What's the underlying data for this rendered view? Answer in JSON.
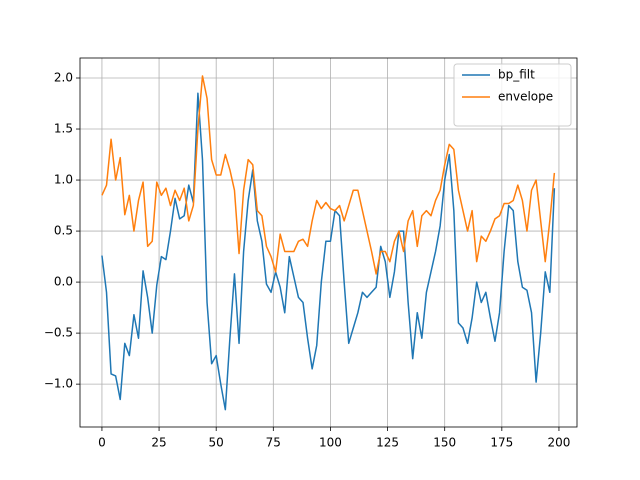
{
  "chart_data": {
    "type": "line",
    "x": [
      0,
      2,
      4,
      6,
      8,
      10,
      12,
      14,
      16,
      18,
      20,
      22,
      24,
      26,
      28,
      30,
      32,
      34,
      36,
      38,
      40,
      42,
      44,
      46,
      48,
      50,
      52,
      54,
      56,
      58,
      60,
      62,
      64,
      66,
      68,
      70,
      72,
      74,
      76,
      78,
      80,
      82,
      84,
      86,
      88,
      90,
      92,
      94,
      96,
      98,
      100,
      102,
      104,
      106,
      108,
      110,
      112,
      114,
      116,
      118,
      120,
      122,
      124,
      126,
      128,
      130,
      132,
      134,
      136,
      138,
      140,
      142,
      144,
      146,
      148,
      150,
      152,
      154,
      156,
      158,
      160,
      162,
      164,
      166,
      168,
      170,
      172,
      174,
      176,
      178,
      180,
      182,
      184,
      186,
      188,
      190,
      192,
      194,
      196,
      198
    ],
    "series": [
      {
        "name": "bp_filt",
        "color": "#1f77b4",
        "values": [
          0.26,
          -0.1,
          -0.9,
          -0.92,
          -1.15,
          -0.6,
          -0.72,
          -0.32,
          -0.55,
          0.11,
          -0.15,
          -0.5,
          -0.03,
          0.25,
          0.22,
          0.5,
          0.82,
          0.62,
          0.65,
          0.95,
          0.78,
          1.85,
          1.2,
          -0.2,
          -0.8,
          -0.72,
          -1.0,
          -1.25,
          -0.55,
          0.08,
          -0.6,
          0.3,
          0.8,
          1.1,
          0.6,
          0.4,
          -0.02,
          -0.1,
          0.1,
          -0.05,
          -0.3,
          0.25,
          0.05,
          -0.15,
          -0.2,
          -0.55,
          -0.85,
          -0.62,
          0.0,
          0.4,
          0.4,
          0.7,
          0.65,
          0.0,
          -0.6,
          -0.45,
          -0.3,
          -0.1,
          -0.15,
          -0.1,
          -0.05,
          0.35,
          0.2,
          -0.15,
          0.1,
          0.5,
          0.5,
          -0.2,
          -0.75,
          -0.3,
          -0.55,
          -0.1,
          0.1,
          0.3,
          0.55,
          1.0,
          1.25,
          0.7,
          -0.4,
          -0.45,
          -0.6,
          -0.35,
          0.0,
          -0.2,
          -0.1,
          -0.35,
          -0.58,
          -0.3,
          0.3,
          0.75,
          0.7,
          0.2,
          -0.05,
          -0.08,
          -0.3,
          -0.98,
          -0.5,
          0.1,
          -0.1,
          0.92
        ]
      },
      {
        "name": "envelope",
        "color": "#ff7f0e",
        "values": [
          0.85,
          0.95,
          1.4,
          1.0,
          1.22,
          0.66,
          0.85,
          0.5,
          0.8,
          0.98,
          0.35,
          0.4,
          0.98,
          0.85,
          0.92,
          0.75,
          0.9,
          0.8,
          0.92,
          0.6,
          0.75,
          1.5,
          2.02,
          1.8,
          1.2,
          1.05,
          1.05,
          1.25,
          1.1,
          0.9,
          0.28,
          0.9,
          1.2,
          1.15,
          0.7,
          0.65,
          0.35,
          0.25,
          0.1,
          0.47,
          0.3,
          0.3,
          0.3,
          0.4,
          0.42,
          0.35,
          0.6,
          0.8,
          0.72,
          0.78,
          0.72,
          0.7,
          0.75,
          0.6,
          0.75,
          0.9,
          0.9,
          0.7,
          0.5,
          0.3,
          0.08,
          0.3,
          0.3,
          0.2,
          0.4,
          0.5,
          0.3,
          0.6,
          0.7,
          0.35,
          0.65,
          0.7,
          0.65,
          0.8,
          0.9,
          1.15,
          1.35,
          1.3,
          0.9,
          0.7,
          0.5,
          0.7,
          0.2,
          0.45,
          0.4,
          0.5,
          0.62,
          0.65,
          0.77,
          0.77,
          0.8,
          0.95,
          0.8,
          0.5,
          0.9,
          1.0,
          0.6,
          0.2,
          0.6,
          1.07
        ]
      }
    ],
    "xlim": [
      -9.6,
      207.9
    ],
    "ylim": [
      -1.42,
      2.196
    ],
    "xticks": [
      0,
      25,
      50,
      75,
      100,
      125,
      150,
      175,
      200
    ],
    "yticks": [
      {
        "value": -1.0,
        "label": "−1.0"
      },
      {
        "value": -0.5,
        "label": "−0.5"
      },
      {
        "value": 0.0,
        "label": "0.0"
      },
      {
        "value": 0.5,
        "label": "0.5"
      },
      {
        "value": 1.0,
        "label": "1.0"
      },
      {
        "value": 1.5,
        "label": "1.5"
      },
      {
        "value": 2.0,
        "label": "2.0"
      }
    ],
    "grid": true,
    "legend": "upper right"
  }
}
